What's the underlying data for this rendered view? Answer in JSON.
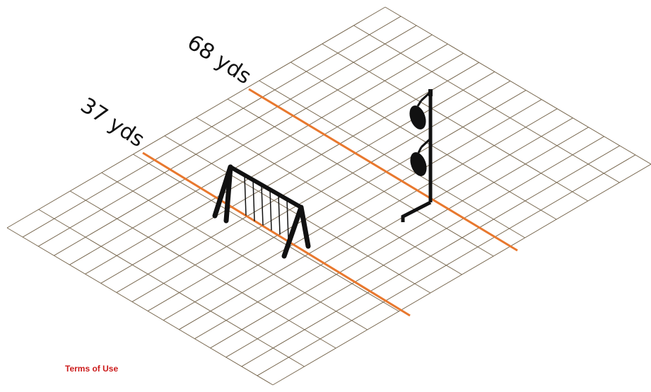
{
  "labels": {
    "near_line": "37 yds",
    "far_line": "68 yds"
  },
  "footer": {
    "terms_link": "Terms of Use"
  },
  "grid": {
    "rows": 12,
    "cols": 17
  },
  "colors": {
    "grid_line": "#7a6a52",
    "distance_line": "#e8782e",
    "equipment": "#111111",
    "terms_link": "#cc1b1b"
  },
  "objects": {
    "swing_set": "swing-set",
    "target_stand": "shooting-target-stand"
  }
}
